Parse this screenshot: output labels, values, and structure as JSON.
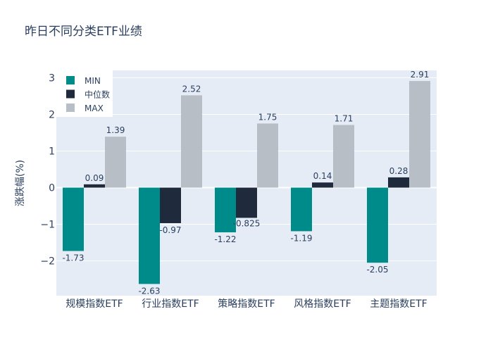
{
  "chart_data": {
    "type": "bar",
    "title": "昨日不同分类ETF业绩",
    "xlabel": "",
    "ylabel": "涨跌幅(%)",
    "ylim": [
      -2.95,
      3.2
    ],
    "yticks": [
      -2,
      -1,
      0,
      1,
      2,
      3
    ],
    "ytick_labels": [
      "−2",
      "−1",
      "0",
      "1",
      "2",
      "3"
    ],
    "categories": [
      "规模指数ETF",
      "行业指数ETF",
      "策略指数ETF",
      "风格指数ETF",
      "主题指数ETF"
    ],
    "series": [
      {
        "name": "MIN",
        "color": "#008B8B",
        "values": [
          -1.73,
          -2.63,
          -1.22,
          -1.19,
          -2.05
        ],
        "labels": [
          "-1.73",
          "-2.63",
          "-1.22",
          "-1.19",
          "-2.05"
        ]
      },
      {
        "name": "中位数",
        "color": "#1F2A3C",
        "values": [
          0.09,
          -0.97,
          -0.825,
          0.14,
          0.28
        ],
        "labels": [
          "0.09",
          "-0.97",
          "-0.825",
          "0.14",
          "0.28"
        ]
      },
      {
        "name": "MAX",
        "color": "#B8BEC6",
        "values": [
          1.39,
          2.52,
          1.75,
          1.71,
          2.91
        ],
        "labels": [
          "1.39",
          "2.52",
          "1.75",
          "1.71",
          "2.91"
        ]
      }
    ],
    "legend": {
      "position": "top-left"
    },
    "grid": true,
    "colors": {
      "plot_bg": "#E5ECF6",
      "grid": "#ffffff",
      "text": "#2a3f5f"
    }
  }
}
